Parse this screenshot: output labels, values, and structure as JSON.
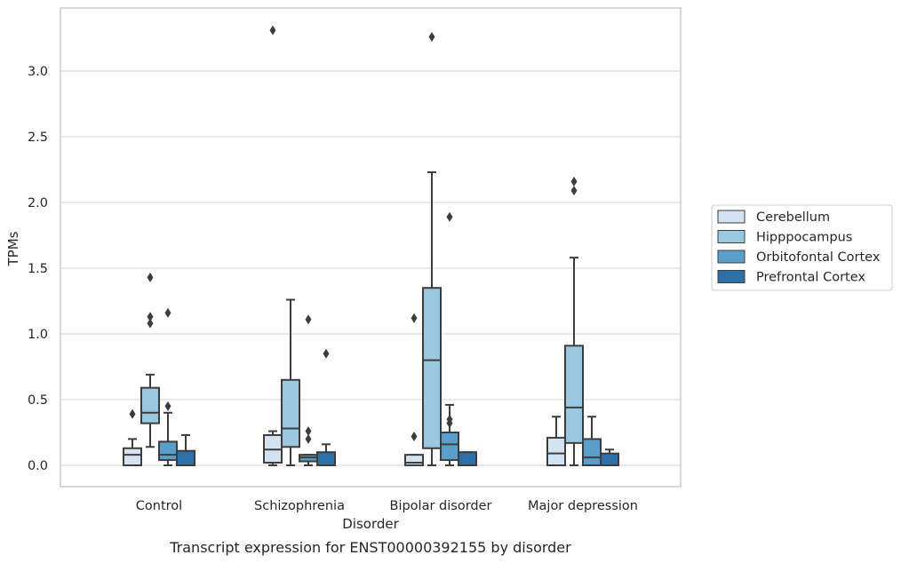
{
  "chart_data": {
    "type": "box",
    "xlabel": "Disorder",
    "ylabel": "TPMs",
    "caption": "Transcript expression for ENST00000392155 by disorder",
    "ylim": [
      -0.16,
      3.47
    ],
    "yticks": [
      "0.0",
      "0.5",
      "1.0",
      "1.5",
      "2.0",
      "2.5",
      "3.0"
    ],
    "grid": "horizontal",
    "legend_position": "right",
    "categories": [
      "Control",
      "Schizophrenia",
      "Bipolar disorder",
      "Major depression"
    ],
    "series": [
      {
        "name": "Cerebellum",
        "color": "#d3e3f2",
        "boxes": [
          {
            "whislo": 0.0,
            "q1": 0.0,
            "med": 0.08,
            "q3": 0.13,
            "whishi": 0.2,
            "fliers": [
              0.39
            ]
          },
          {
            "whislo": 0.0,
            "q1": 0.02,
            "med": 0.12,
            "q3": 0.23,
            "whishi": 0.26,
            "fliers": [
              3.31
            ]
          },
          {
            "whislo": 0.0,
            "q1": 0.0,
            "med": 0.02,
            "q3": 0.08,
            "whishi": 0.08,
            "fliers": [
              1.12,
              0.22
            ]
          },
          {
            "whislo": 0.0,
            "q1": 0.0,
            "med": 0.09,
            "q3": 0.21,
            "whishi": 0.37,
            "fliers": []
          }
        ]
      },
      {
        "name": "Hipppocampus",
        "color": "#9ac8e0",
        "boxes": [
          {
            "whislo": 0.14,
            "q1": 0.32,
            "med": 0.4,
            "q3": 0.59,
            "whishi": 0.69,
            "fliers": [
              1.43,
              1.13,
              1.08
            ]
          },
          {
            "whislo": 0.0,
            "q1": 0.14,
            "med": 0.28,
            "q3": 0.65,
            "whishi": 1.26,
            "fliers": []
          },
          {
            "whislo": 0.0,
            "q1": 0.13,
            "med": 0.8,
            "q3": 1.35,
            "whishi": 2.23,
            "fliers": [
              3.26
            ]
          },
          {
            "whislo": 0.0,
            "q1": 0.17,
            "med": 0.44,
            "q3": 0.91,
            "whishi": 1.58,
            "fliers": [
              2.16,
              2.09
            ]
          }
        ]
      },
      {
        "name": "Orbitofontal Cortex",
        "color": "#5a9ecc",
        "boxes": [
          {
            "whislo": 0.0,
            "q1": 0.04,
            "med": 0.08,
            "q3": 0.18,
            "whishi": 0.4,
            "fliers": [
              1.16,
              0.45
            ]
          },
          {
            "whislo": 0.0,
            "q1": 0.03,
            "med": 0.06,
            "q3": 0.08,
            "whishi": 0.08,
            "fliers": [
              1.11,
              0.26,
              0.2
            ]
          },
          {
            "whislo": 0.0,
            "q1": 0.04,
            "med": 0.16,
            "q3": 0.25,
            "whishi": 0.46,
            "fliers": [
              1.89,
              0.35,
              0.32
            ]
          },
          {
            "whislo": 0.0,
            "q1": 0.0,
            "med": 0.06,
            "q3": 0.2,
            "whishi": 0.37,
            "fliers": []
          }
        ]
      },
      {
        "name": "Prefrontal Cortex",
        "color": "#2e6fa8",
        "boxes": [
          {
            "whislo": 0.0,
            "q1": 0.0,
            "med": 0.0,
            "q3": 0.11,
            "whishi": 0.23,
            "fliers": []
          },
          {
            "whislo": 0.0,
            "q1": 0.0,
            "med": 0.0,
            "q3": 0.1,
            "whishi": 0.16,
            "fliers": [
              0.85
            ]
          },
          {
            "whislo": 0.0,
            "q1": 0.0,
            "med": 0.0,
            "q3": 0.1,
            "whishi": 0.1,
            "fliers": []
          },
          {
            "whislo": 0.0,
            "q1": 0.0,
            "med": 0.0,
            "q3": 0.09,
            "whishi": 0.12,
            "fliers": []
          }
        ]
      }
    ]
  }
}
